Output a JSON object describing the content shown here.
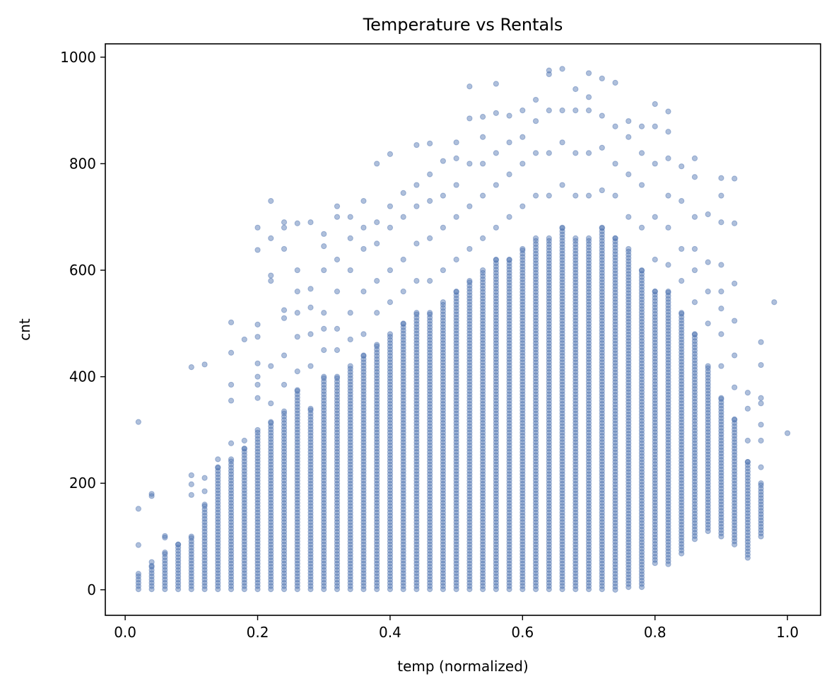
{
  "chart_data": {
    "type": "scatter",
    "title": "Temperature vs Rentals",
    "xlabel": "temp (normalized)",
    "ylabel": "cnt",
    "xlim": [
      -0.03,
      1.05
    ],
    "ylim": [
      -48,
      1025
    ],
    "xticks": [
      0.0,
      0.2,
      0.4,
      0.6,
      0.8,
      1.0
    ],
    "xtick_labels": [
      "0.0",
      "0.2",
      "0.4",
      "0.6",
      "0.8",
      "1.0"
    ],
    "yticks": [
      0,
      200,
      400,
      600,
      800,
      1000
    ],
    "ytick_labels": [
      "0",
      "200",
      "400",
      "600",
      "800",
      "1000"
    ],
    "grid": false,
    "legend": "none",
    "marker_color": "#4c72b0",
    "marker_opacity": 0.45,
    "columns": [
      {
        "x": 0.02,
        "dense_max": 30,
        "outliers": [
          84,
          152,
          315
        ]
      },
      {
        "x": 0.04,
        "dense_max": 45,
        "outliers": [
          52,
          176,
          180
        ]
      },
      {
        "x": 0.06,
        "dense_max": 70,
        "outliers": [
          98,
          101
        ]
      },
      {
        "x": 0.08,
        "dense_max": 85,
        "outliers": []
      },
      {
        "x": 0.1,
        "dense_max": 100,
        "outliers": [
          178,
          198,
          215,
          418
        ]
      },
      {
        "x": 0.12,
        "dense_max": 160,
        "outliers": [
          185,
          210,
          423
        ]
      },
      {
        "x": 0.14,
        "dense_max": 230,
        "outliers": [
          245
        ]
      },
      {
        "x": 0.16,
        "dense_max": 245,
        "outliers": [
          275,
          355,
          385,
          445,
          502
        ]
      },
      {
        "x": 0.18,
        "dense_max": 265,
        "outliers": [
          280,
          470
        ]
      },
      {
        "x": 0.2,
        "dense_max": 300,
        "outliers": [
          360,
          385,
          400,
          425,
          475,
          498,
          638,
          680
        ]
      },
      {
        "x": 0.22,
        "dense_max": 315,
        "outliers": [
          350,
          420,
          580,
          590,
          660,
          730
        ]
      },
      {
        "x": 0.24,
        "dense_max": 335,
        "outliers": [
          385,
          440,
          510,
          525,
          640,
          680,
          690
        ]
      },
      {
        "x": 0.26,
        "dense_max": 375,
        "outliers": [
          410,
          475,
          520,
          560,
          600,
          688
        ]
      },
      {
        "x": 0.28,
        "dense_max": 340,
        "outliers": [
          420,
          480,
          530,
          565,
          690
        ]
      },
      {
        "x": 0.3,
        "dense_max": 400,
        "outliers": [
          450,
          490,
          520,
          600,
          645,
          668
        ]
      },
      {
        "x": 0.32,
        "dense_max": 400,
        "outliers": [
          450,
          490,
          560,
          620,
          700,
          720
        ]
      },
      {
        "x": 0.34,
        "dense_max": 420,
        "outliers": [
          470,
          520,
          600,
          660,
          700
        ]
      },
      {
        "x": 0.36,
        "dense_max": 440,
        "outliers": [
          480,
          560,
          640,
          680,
          730
        ]
      },
      {
        "x": 0.38,
        "dense_max": 460,
        "outliers": [
          520,
          580,
          650,
          690,
          800
        ]
      },
      {
        "x": 0.4,
        "dense_max": 480,
        "outliers": [
          540,
          600,
          680,
          720,
          818
        ]
      },
      {
        "x": 0.42,
        "dense_max": 500,
        "outliers": [
          560,
          620,
          700,
          745
        ]
      },
      {
        "x": 0.44,
        "dense_max": 520,
        "outliers": [
          580,
          650,
          720,
          760,
          835
        ]
      },
      {
        "x": 0.46,
        "dense_max": 520,
        "outliers": [
          580,
          660,
          730,
          780,
          838
        ]
      },
      {
        "x": 0.48,
        "dense_max": 540,
        "outliers": [
          600,
          680,
          740,
          805
        ]
      },
      {
        "x": 0.5,
        "dense_max": 560,
        "outliers": [
          620,
          700,
          760,
          810,
          840
        ]
      },
      {
        "x": 0.52,
        "dense_max": 580,
        "outliers": [
          640,
          720,
          800,
          885,
          945
        ]
      },
      {
        "x": 0.54,
        "dense_max": 600,
        "outliers": [
          660,
          740,
          800,
          850,
          888
        ]
      },
      {
        "x": 0.56,
        "dense_max": 620,
        "outliers": [
          680,
          760,
          820,
          895,
          950
        ]
      },
      {
        "x": 0.58,
        "dense_max": 620,
        "outliers": [
          700,
          780,
          840,
          890
        ]
      },
      {
        "x": 0.6,
        "dense_max": 640,
        "outliers": [
          720,
          800,
          850,
          900
        ]
      },
      {
        "x": 0.62,
        "dense_max": 660,
        "outliers": [
          740,
          820,
          880,
          920
        ]
      },
      {
        "x": 0.64,
        "dense_max": 660,
        "outliers": [
          740,
          820,
          900,
          968,
          975
        ]
      },
      {
        "x": 0.66,
        "dense_max": 680,
        "outliers": [
          760,
          840,
          900,
          978
        ]
      },
      {
        "x": 0.68,
        "dense_max": 660,
        "outliers": [
          740,
          820,
          900,
          940
        ]
      },
      {
        "x": 0.7,
        "dense_max": 660,
        "outliers": [
          740,
          820,
          900,
          925,
          970
        ]
      },
      {
        "x": 0.72,
        "dense_max": 680,
        "outliers": [
          750,
          830,
          890,
          960
        ]
      },
      {
        "x": 0.74,
        "dense_max": 660,
        "outliers": [
          740,
          800,
          870,
          952
        ]
      },
      {
        "x": 0.76,
        "dense_max": 640,
        "outliers": [
          700,
          780,
          850,
          880
        ]
      },
      {
        "x": 0.78,
        "dense_max": 600,
        "outliers": [
          680,
          760,
          820,
          870
        ]
      },
      {
        "x": 0.8,
        "dense_max": 560,
        "outliers": [
          620,
          700,
          800,
          870,
          912
        ]
      },
      {
        "x": 0.82,
        "dense_max": 560,
        "outliers": [
          610,
          680,
          740,
          810,
          860,
          898
        ]
      },
      {
        "x": 0.84,
        "dense_max": 520,
        "outliers": [
          580,
          640,
          730,
          795
        ]
      },
      {
        "x": 0.86,
        "dense_max": 480,
        "outliers": [
          540,
          600,
          640,
          700,
          775,
          810
        ]
      },
      {
        "x": 0.88,
        "dense_max": 420,
        "outliers": [
          500,
          560,
          615,
          705
        ]
      },
      {
        "x": 0.9,
        "dense_max": 360,
        "outliers": [
          420,
          480,
          528,
          560,
          610,
          690,
          740,
          773
        ]
      },
      {
        "x": 0.92,
        "dense_max": 320,
        "outliers": [
          380,
          440,
          505,
          575,
          688,
          772
        ]
      },
      {
        "x": 0.94,
        "dense_max": 240,
        "outliers": [
          280,
          340,
          370
        ]
      },
      {
        "x": 0.96,
        "dense_max": 200,
        "outliers": [
          230,
          280,
          310,
          350,
          360,
          422,
          465
        ]
      },
      {
        "x": 0.98,
        "dense_max": 0,
        "outliers": [
          540
        ]
      },
      {
        "x": 1.0,
        "dense_max": 0,
        "outliers": [
          294
        ]
      }
    ],
    "column_min": {
      "0.74": 0,
      "0.76": 5,
      "0.78": 5,
      "0.80": 50,
      "0.82": 48,
      "0.84": 68,
      "0.86": 95,
      "0.88": 110,
      "0.90": 100,
      "0.92": 85,
      "0.94": 60,
      "0.96": 100
    }
  }
}
